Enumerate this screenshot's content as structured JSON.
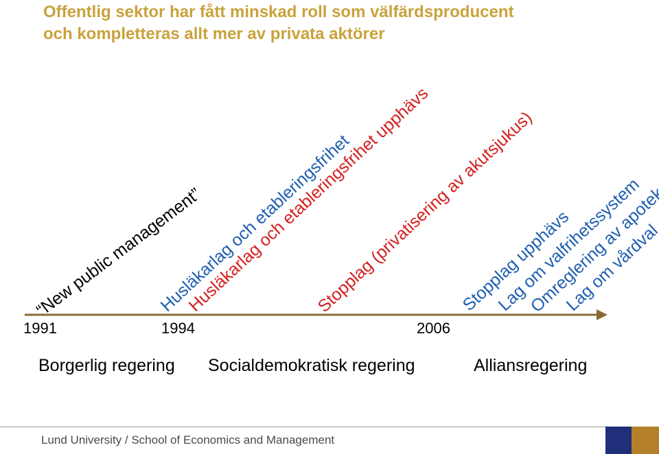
{
  "title": {
    "line1": "Offentlig sektor har fått minskad roll som välfärdsproducent",
    "line2": "och kompletteras allt mer av privata aktörer"
  },
  "events": [
    {
      "text": "“New public management”",
      "color": "#000000"
    },
    {
      "text": "Husläkarlag och etableringsfrihet",
      "color": "#1F5FB0"
    },
    {
      "text": "Husläkarlag och etableringsfrihet upphävs",
      "color": "#D42020"
    },
    {
      "text": "Stopplag (privatisering av akutsjukus)",
      "color": "#D42020"
    },
    {
      "text": "Stopplag upphävs",
      "color": "#1F5FB0"
    },
    {
      "text": "Lag om valfrihetssystem",
      "color": "#1F5FB0"
    },
    {
      "text": "Omreglering av apotek",
      "color": "#1F5FB0"
    },
    {
      "text": "Lag om vårdval",
      "color": "#1F5FB0"
    }
  ],
  "years": [
    "1991",
    "1994",
    "2006"
  ],
  "eras": [
    "Borgerlig regering",
    "Socialdemokratisk regering",
    "Alliansregering"
  ],
  "footer": "Lund University / School of Economics and Management",
  "colors": {
    "title": "#C9A23B",
    "timeline": "#8B6A3A",
    "blue": "#1F5FB0",
    "red": "#D42020",
    "logo_navy": "#1F2F7A",
    "logo_gold": "#B5802A"
  }
}
